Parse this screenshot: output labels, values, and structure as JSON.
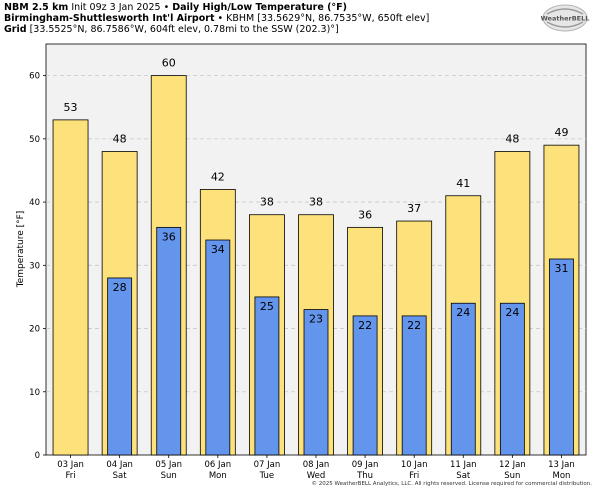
{
  "header": {
    "model": "NBM 2.5 km",
    "init": "Init 09z 3 Jan 2025",
    "product": "Daily High/Low Temperature (°F)",
    "station_name": "Birmingham-Shuttlesworth Int'l Airport",
    "station_info": "KBHM [33.5629°N, 86.7535°W, 650ft elev]",
    "grid_label": "Grid",
    "grid_info": "[33.5525°N, 86.7586°W, 604ft elev, 0.78mi to the SSW (202.3)°]"
  },
  "logo": {
    "text": "WeatherBELL"
  },
  "footer": "© 2025 WeatherBELL Analytics, LLC. All rights reserved. License required for commercial distribution.",
  "colors": {
    "high": "#fde27c",
    "low": "#6495ed",
    "plot_bg": "#f2f2f2"
  },
  "chart_data": {
    "type": "bar",
    "title": "",
    "xlabel": "",
    "ylabel": "Temperature [°F]",
    "ylim": [
      0,
      65
    ],
    "yticks": [
      0,
      10,
      20,
      30,
      40,
      50,
      60
    ],
    "grid": true,
    "categories": [
      {
        "date": "03 Jan",
        "day": "Fri"
      },
      {
        "date": "04 Jan",
        "day": "Sat"
      },
      {
        "date": "05 Jan",
        "day": "Sun"
      },
      {
        "date": "06 Jan",
        "day": "Mon"
      },
      {
        "date": "07 Jan",
        "day": "Tue"
      },
      {
        "date": "08 Jan",
        "day": "Wed"
      },
      {
        "date": "09 Jan",
        "day": "Thu"
      },
      {
        "date": "10 Jan",
        "day": "Fri"
      },
      {
        "date": "11 Jan",
        "day": "Sat"
      },
      {
        "date": "12 Jan",
        "day": "Sun"
      },
      {
        "date": "13 Jan",
        "day": "Mon"
      }
    ],
    "series": [
      {
        "key": "high",
        "values": [
          53,
          48,
          60,
          42,
          38,
          38,
          36,
          37,
          41,
          48,
          49
        ]
      },
      {
        "key": "low",
        "values": [
          null,
          28,
          36,
          34,
          25,
          23,
          22,
          22,
          24,
          24,
          31
        ]
      }
    ]
  }
}
